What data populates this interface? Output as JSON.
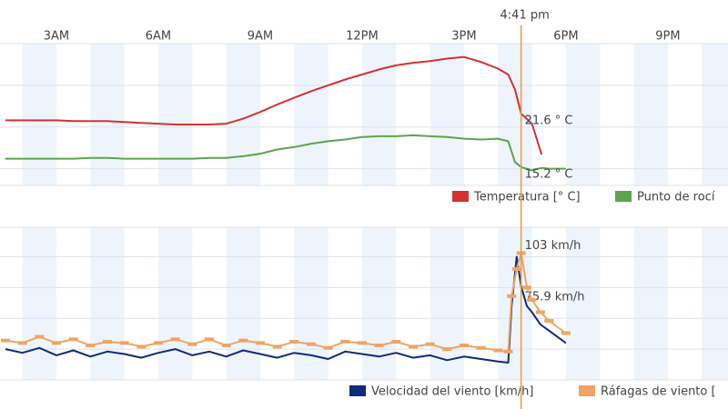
{
  "chart_data": [
    {
      "type": "line",
      "x": [
        1.5,
        2,
        2.5,
        3,
        3.5,
        4,
        4.5,
        5,
        5.5,
        6,
        6.5,
        7,
        7.5,
        8,
        8.5,
        9,
        9.5,
        10,
        10.5,
        11,
        11.5,
        12,
        12.5,
        13,
        13.5,
        14,
        14.5,
        15,
        15.5,
        16,
        16.3,
        16.5,
        16.68,
        17,
        17.28,
        17.5,
        18
      ],
      "xlim": [
        1.34,
        22.77
      ],
      "xticks": [
        {
          "value": 3,
          "label": "3AM"
        },
        {
          "value": 6,
          "label": "6AM"
        },
        {
          "value": 9,
          "label": "9AM"
        },
        {
          "value": 12,
          "label": "12PM"
        },
        {
          "value": 15,
          "label": "3PM"
        },
        {
          "value": 18,
          "label": "6PM"
        },
        {
          "value": 21,
          "label": "9PM"
        }
      ],
      "ylim": [
        13,
        30
      ],
      "yticks": [
        15,
        20,
        25
      ],
      "grid": true,
      "cursor": {
        "x": 16.68,
        "label": "4:41 pm"
      },
      "series": [
        {
          "name": "Temperatura [° C]",
          "color": "#d63031",
          "values": [
            20.8,
            20.8,
            20.8,
            20.8,
            20.7,
            20.7,
            20.7,
            20.6,
            20.5,
            20.4,
            20.3,
            20.3,
            20.3,
            20.4,
            21.0,
            21.8,
            22.7,
            23.5,
            24.3,
            25.0,
            25.7,
            26.3,
            26.9,
            27.4,
            27.7,
            27.9,
            28.2,
            28.4,
            27.8,
            27.0,
            26.3,
            24.5,
            21.6,
            20.4,
            16.7,
            null,
            null
          ],
          "value_labels": [
            null,
            null,
            null,
            null,
            null,
            null,
            null,
            null,
            null,
            null,
            null,
            null,
            null,
            null,
            null,
            null,
            null,
            null,
            null,
            null,
            null,
            null,
            null,
            null,
            null,
            null,
            null,
            null,
            null,
            null,
            null,
            null,
            "21.6 ° C",
            null,
            null,
            null,
            null
          ]
        },
        {
          "name": "Punto de rocí",
          "color": "#5aa64b",
          "values": [
            16.2,
            16.2,
            16.2,
            16.2,
            16.2,
            16.3,
            16.3,
            16.2,
            16.2,
            16.2,
            16.2,
            16.2,
            16.3,
            16.3,
            16.5,
            16.8,
            17.3,
            17.6,
            18.0,
            18.3,
            18.5,
            18.8,
            18.9,
            18.9,
            19.0,
            18.9,
            18.8,
            18.6,
            18.5,
            18.6,
            18.3,
            15.8,
            15.2,
            14.8,
            15.1,
            15.0,
            15.0
          ],
          "value_labels": [
            null,
            null,
            null,
            null,
            null,
            null,
            null,
            null,
            null,
            null,
            null,
            null,
            null,
            null,
            null,
            null,
            null,
            null,
            null,
            null,
            null,
            null,
            null,
            null,
            null,
            null,
            null,
            null,
            null,
            null,
            null,
            null,
            "15.2 ° C",
            null,
            null,
            null,
            null
          ]
        }
      ]
    },
    {
      "type": "line",
      "x": [
        1.5,
        2,
        2.5,
        3,
        3.5,
        4,
        4.5,
        5,
        5.5,
        6,
        6.5,
        7,
        7.5,
        8,
        8.5,
        9,
        9.5,
        10,
        10.5,
        11,
        11.5,
        12,
        12.5,
        13,
        13.5,
        14,
        14.5,
        15,
        15.5,
        16,
        16.3,
        16.4,
        16.55,
        16.68,
        16.85,
        17,
        17.25,
        17.5,
        18
      ],
      "xlim": [
        1.34,
        22.77
      ],
      "ylim": [
        0,
        124
      ],
      "yticks": [
        25,
        50,
        75,
        100
      ],
      "grid": true,
      "series": [
        {
          "name": "Velocidad del viento [km/h]",
          "color": "#0d2c7c",
          "values": [
            25,
            22,
            26,
            20,
            24,
            19,
            23,
            21,
            18,
            22,
            25,
            20,
            23,
            19,
            24,
            21,
            18,
            22,
            20,
            17,
            23,
            21,
            19,
            22,
            18,
            20,
            16,
            19,
            17,
            15,
            14,
            60,
            100,
            75.9,
            60,
            55,
            45,
            40,
            30
          ],
          "value_labels": [
            null,
            null,
            null,
            null,
            null,
            null,
            null,
            null,
            null,
            null,
            null,
            null,
            null,
            null,
            null,
            null,
            null,
            null,
            null,
            null,
            null,
            null,
            null,
            null,
            null,
            null,
            null,
            null,
            null,
            null,
            null,
            null,
            null,
            "75.9 km/h",
            null,
            null,
            null,
            null,
            null
          ]
        },
        {
          "name": "Ráfagas de viento [",
          "color": "#f0a462",
          "values": [
            32,
            30,
            35,
            30,
            33,
            28,
            31,
            30,
            27,
            30,
            33,
            29,
            33,
            28,
            32,
            30,
            27,
            31,
            29,
            26,
            31,
            30,
            28,
            31,
            27,
            29,
            25,
            28,
            26,
            24,
            23,
            68,
            90,
            103,
            75,
            65,
            55,
            48,
            38
          ],
          "value_labels": [
            null,
            null,
            null,
            null,
            null,
            null,
            null,
            null,
            null,
            null,
            null,
            null,
            null,
            null,
            null,
            null,
            null,
            null,
            null,
            null,
            null,
            null,
            null,
            null,
            null,
            null,
            null,
            null,
            null,
            null,
            null,
            null,
            null,
            "103 km/h",
            null,
            null,
            null,
            null,
            null
          ]
        }
      ]
    }
  ]
}
